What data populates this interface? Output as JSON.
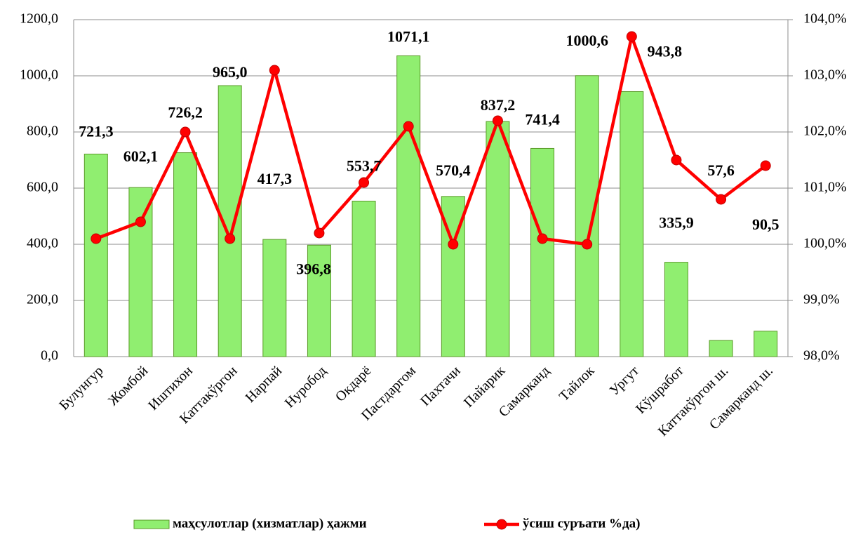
{
  "chart_data": {
    "type": "bar_line",
    "categories": [
      "Булунгур",
      "Жомбой",
      "Иштихон",
      "Каттакўргон",
      "Нарпай",
      "Нуробод",
      "Окдарё",
      "Пастдаргом",
      "Пахтачи",
      "Пайарик",
      "Самарканд",
      "Тайлок",
      "Ургут",
      "Кўшработ",
      "Каттакўргон ш.",
      "Самарканд ш."
    ],
    "series": [
      {
        "name": "маҳсулотлар (хизматлар) ҳажми",
        "type": "bar",
        "color": "#90ee70",
        "edge": "#5a9a28",
        "values": [
          721.3,
          602.1,
          726.2,
          965.0,
          417.3,
          396.8,
          553.7,
          1071.1,
          570.4,
          837.2,
          741.4,
          1000.6,
          943.8,
          335.9,
          57.6,
          90.5
        ],
        "value_labels": [
          "721,3",
          "602,1",
          "726,2",
          "965,0",
          "417,3",
          "396,8",
          "553,7",
          "1071,1",
          "570,4",
          "837,2",
          "741,4",
          "1000,6",
          "943,8",
          "335,9",
          "57,6",
          "90,5"
        ]
      },
      {
        "name": "ўсиш суръати %да)",
        "type": "line",
        "axis": "y2",
        "color": "#ff0000",
        "values": [
          100.1,
          100.4,
          102.0,
          100.1,
          103.1,
          100.2,
          101.1,
          102.1,
          100.0,
          102.2,
          100.1,
          100.0,
          103.7,
          101.5,
          100.8,
          101.4
        ]
      }
    ],
    "ylim": [
      0,
      1200
    ],
    "yticks": [
      {
        "value": 0,
        "label": "0,0"
      },
      {
        "value": 200,
        "label": "200,0"
      },
      {
        "value": 400,
        "label": "400,0"
      },
      {
        "value": 600,
        "label": "600,0"
      },
      {
        "value": 800,
        "label": "800,0"
      },
      {
        "value": 1000,
        "label": "1000,0"
      },
      {
        "value": 1200,
        "label": "1200,0"
      }
    ],
    "y2lim": [
      98,
      104
    ],
    "y2ticks": [
      {
        "value": 98,
        "label": "98,0%"
      },
      {
        "value": 99,
        "label": "99,0%"
      },
      {
        "value": 100,
        "label": "100,0%"
      },
      {
        "value": 101,
        "label": "101,0%"
      },
      {
        "value": 102,
        "label": "102,0%"
      },
      {
        "value": 103,
        "label": "103,0%"
      },
      {
        "value": 104,
        "label": "104,0%"
      }
    ],
    "grid": true,
    "legend": "bottom"
  }
}
